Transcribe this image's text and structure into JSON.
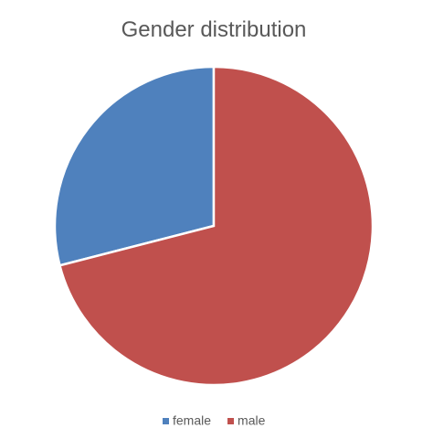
{
  "chart_data": {
    "type": "pie",
    "title": "Gender distribution",
    "categories": [
      "female",
      "male"
    ],
    "values": [
      29,
      71
    ],
    "colors": [
      "#4f81bd",
      "#c0504d"
    ],
    "legend": "bottom"
  }
}
